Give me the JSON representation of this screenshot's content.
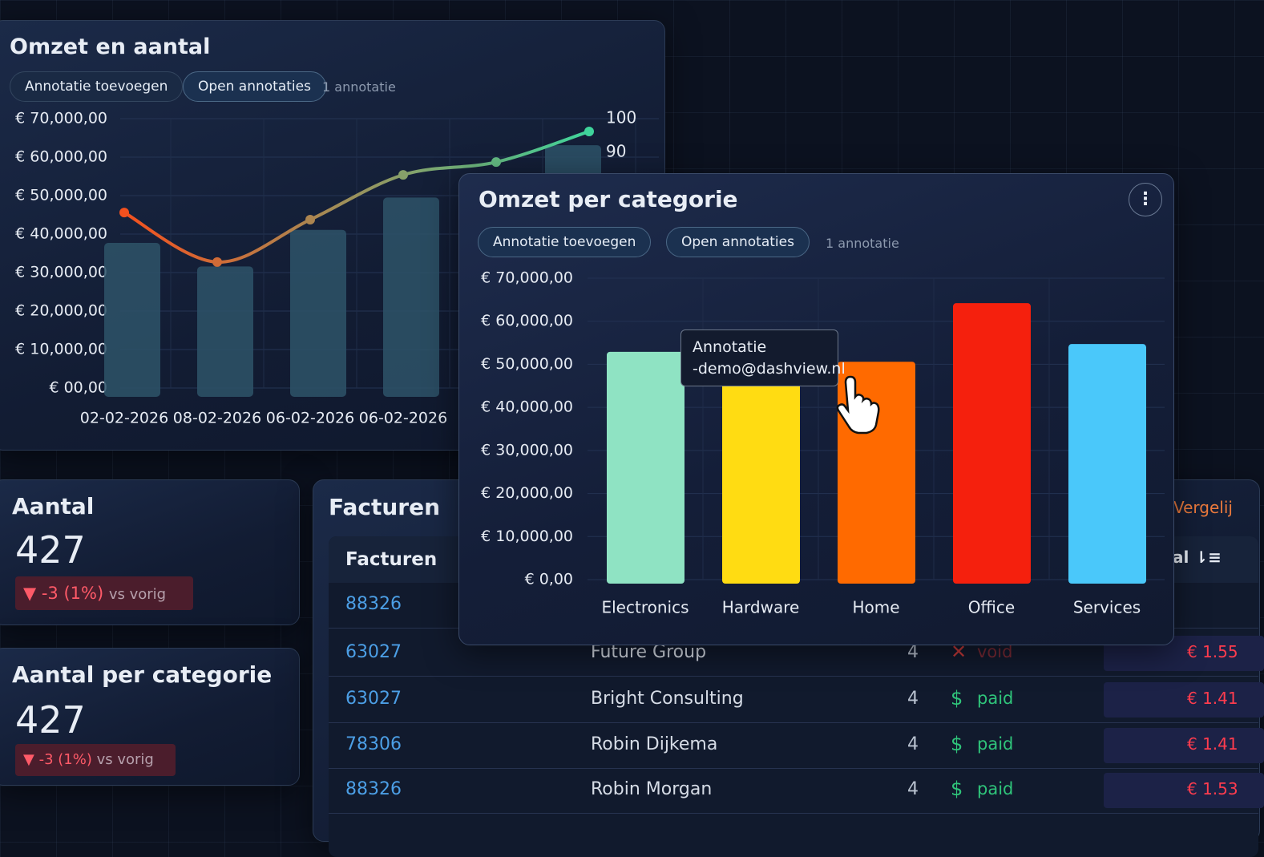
{
  "chart_data": [
    {
      "type": "combo",
      "title": "Omzet en aantal",
      "buttons": [
        "Annotatie toevoegen",
        "Open annotaties"
      ],
      "annotation_count": "1 annotatie",
      "categories": [
        "02-02-2026",
        "08-02-2026",
        "06-02-2026",
        "06-02-2026",
        null,
        null
      ],
      "series": [
        {
          "type": "bar",
          "color": "#2e5468",
          "values": [
            37700,
            31600,
            41100,
            49500,
            null,
            63100
          ]
        },
        {
          "type": "line",
          "axis": "y2",
          "gradient": [
            "#f4511e",
            "#3fd49b"
          ],
          "values": [
            72.1,
            57.4,
            70,
            83.3,
            87.1,
            96.2
          ]
        }
      ],
      "ylim": [
        0,
        70000
      ],
      "yticks": [
        {
          "value": 0,
          "label": "€ 00,00"
        },
        {
          "value": 10000,
          "label": "€ 10,000,00"
        },
        {
          "value": 20000,
          "label": "€ 20,000,00"
        },
        {
          "value": 30000,
          "label": "€ 30,000,00"
        },
        {
          "value": 40000,
          "label": "€ 40,000,00"
        },
        {
          "value": 50000,
          "label": "€ 50,000,00"
        },
        {
          "value": 60000,
          "label": "€ 60,000,00"
        },
        {
          "value": 70000,
          "label": "€ 70,000,00"
        }
      ],
      "y2lim": [
        20,
        100
      ],
      "y2ticks": [
        90,
        100
      ],
      "grid": true
    },
    {
      "type": "bar",
      "title": "Omzet per categorie",
      "buttons": [
        "Annotatie toevoegen",
        "Open annotaties"
      ],
      "annotation_count": "1 annotatie",
      "categories": [
        "Electronics",
        "Hardware",
        "Home",
        "Office",
        "Services"
      ],
      "values": [
        52900,
        51000,
        50600,
        64200,
        54700
      ],
      "colors": [
        "#8fe3c3",
        "#ffdc12",
        "#ff6a00",
        "#f5200d",
        "#4ac8fa"
      ],
      "ylim": [
        0,
        70000
      ],
      "yticks": [
        {
          "value": 0,
          "label": "€ 0,00"
        },
        {
          "value": 10000,
          "label": "€ 10,000,00"
        },
        {
          "value": 20000,
          "label": "€ 20,000,00"
        },
        {
          "value": 30000,
          "label": "€ 30,000,00"
        },
        {
          "value": 40000,
          "label": "€ 40,000,00"
        },
        {
          "value": 50000,
          "label": "€ 50,000,00"
        },
        {
          "value": 60000,
          "label": "€ 60,000,00"
        },
        {
          "value": 70000,
          "label": "€ 70,000,00"
        }
      ],
      "grid": true,
      "annotation": [
        "Annotatie",
        "-demo@dashview.nl"
      ]
    }
  ],
  "kpis": [
    {
      "title": "Aantal",
      "value": "427",
      "change": "-3 (1%)",
      "suffix": "vs vorig"
    },
    {
      "title": "Aantal per categorie",
      "value": "427",
      "change": "-3 (1%)",
      "suffix": "vs vorig"
    }
  ],
  "table": {
    "title": "Facturen",
    "compare": "Vergelij",
    "header": [
      "Facturen",
      "al"
    ],
    "rows": [
      [
        "88326"
      ],
      [
        "63027",
        "Future Group",
        "4",
        "void",
        "€ 1.55"
      ],
      [
        "63027",
        "Bright Consulting",
        "4",
        "paid",
        "€ 1.41"
      ],
      [
        "78306",
        "Robin Dijkema",
        "4",
        "paid",
        "€ 1.41"
      ],
      [
        "88326",
        "Robin Morgan",
        "4",
        "paid",
        "€ 1.53"
      ]
    ]
  }
}
